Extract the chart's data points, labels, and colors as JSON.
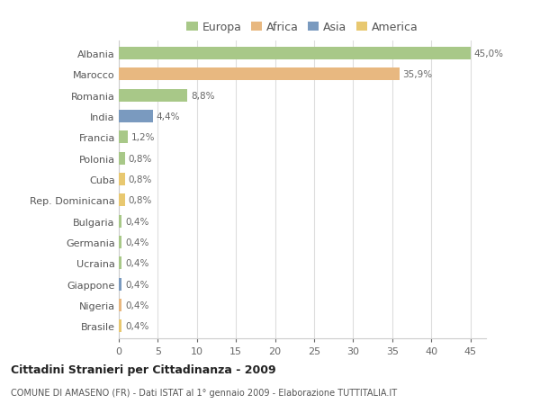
{
  "categories": [
    "Albania",
    "Marocco",
    "Romania",
    "India",
    "Francia",
    "Polonia",
    "Cuba",
    "Rep. Dominicana",
    "Bulgaria",
    "Germania",
    "Ucraina",
    "Giappone",
    "Nigeria",
    "Brasile"
  ],
  "values": [
    45.0,
    35.9,
    8.8,
    4.4,
    1.2,
    0.8,
    0.8,
    0.8,
    0.4,
    0.4,
    0.4,
    0.4,
    0.4,
    0.4
  ],
  "labels": [
    "45,0%",
    "35,9%",
    "8,8%",
    "4,4%",
    "1,2%",
    "0,8%",
    "0,8%",
    "0,8%",
    "0,4%",
    "0,4%",
    "0,4%",
    "0,4%",
    "0,4%",
    "0,4%"
  ],
  "colors": [
    "#a8c888",
    "#e8b880",
    "#a8c888",
    "#7a9abf",
    "#a8c888",
    "#a8c888",
    "#e8c870",
    "#e8c870",
    "#a8c888",
    "#a8c888",
    "#a8c888",
    "#7a9abf",
    "#e8b880",
    "#e8c870"
  ],
  "legend_labels": [
    "Europa",
    "Africa",
    "Asia",
    "America"
  ],
  "legend_colors": [
    "#a8c888",
    "#e8b880",
    "#7a9abf",
    "#e8c870"
  ],
  "xlim": [
    0,
    47
  ],
  "xticks": [
    0,
    5,
    10,
    15,
    20,
    25,
    30,
    35,
    40,
    45
  ],
  "title": "Cittadini Stranieri per Cittadinanza - 2009",
  "subtitle": "COMUNE DI AMASENO (FR) - Dati ISTAT al 1° gennaio 2009 - Elaborazione TUTTITALIA.IT",
  "bg_color": "#ffffff",
  "grid_color": "#dddddd",
  "bar_height": 0.6
}
